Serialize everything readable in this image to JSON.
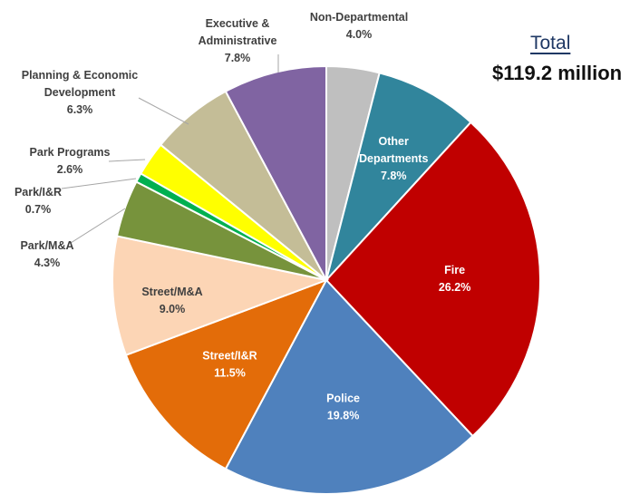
{
  "total": {
    "title": "Total",
    "value": "$119.2 million"
  },
  "chart_data": {
    "type": "pie",
    "title": "Total $119.2 million",
    "unit": "%",
    "start": "12 o'clock, clockwise",
    "slices": [
      {
        "name": "Non-Departmental",
        "lines": [
          "Non-Departmental"
        ],
        "value": 4.0,
        "pct": "4.0%",
        "color": "#bfbfbf",
        "placement": "outside"
      },
      {
        "name": "Other Departments",
        "lines": [
          "Other",
          "Departments"
        ],
        "value": 7.8,
        "pct": "7.8%",
        "color": "#31859c",
        "placement": "inside"
      },
      {
        "name": "Fire",
        "lines": [
          "Fire"
        ],
        "value": 26.2,
        "pct": "26.2%",
        "color": "#c00000",
        "placement": "inside"
      },
      {
        "name": "Police",
        "lines": [
          "Police"
        ],
        "value": 19.8,
        "pct": "19.8%",
        "color": "#4f81bd",
        "placement": "inside"
      },
      {
        "name": "Street/I&R",
        "lines": [
          "Street/I&R"
        ],
        "value": 11.5,
        "pct": "11.5%",
        "color": "#e36c09",
        "placement": "inside"
      },
      {
        "name": "Street/M&A",
        "lines": [
          "Street/M&A"
        ],
        "value": 9.0,
        "pct": "9.0%",
        "color": "#fcd5b5",
        "placement": "inside-dark"
      },
      {
        "name": "Park/M&A",
        "lines": [
          "Park/M&A"
        ],
        "value": 4.3,
        "pct": "4.3%",
        "color": "#77933c",
        "placement": "outside"
      },
      {
        "name": "Park/I&R",
        "lines": [
          "Park/I&R"
        ],
        "value": 0.7,
        "pct": "0.7%",
        "color": "#00b050",
        "placement": "outside"
      },
      {
        "name": "Park Programs",
        "lines": [
          "Park Programs"
        ],
        "value": 2.6,
        "pct": "2.6%",
        "color": "#ffff00",
        "placement": "outside"
      },
      {
        "name": "Planning & Economic Development",
        "lines": [
          "Planning & Economic",
          "Development"
        ],
        "value": 6.3,
        "pct": "6.3%",
        "color": "#c4bd97",
        "placement": "outside"
      },
      {
        "name": "Executive & Administrative",
        "lines": [
          "Executive &",
          "Administrative"
        ],
        "value": 7.8,
        "pct": "7.8%",
        "color": "#8064a2",
        "placement": "outside"
      }
    ]
  }
}
